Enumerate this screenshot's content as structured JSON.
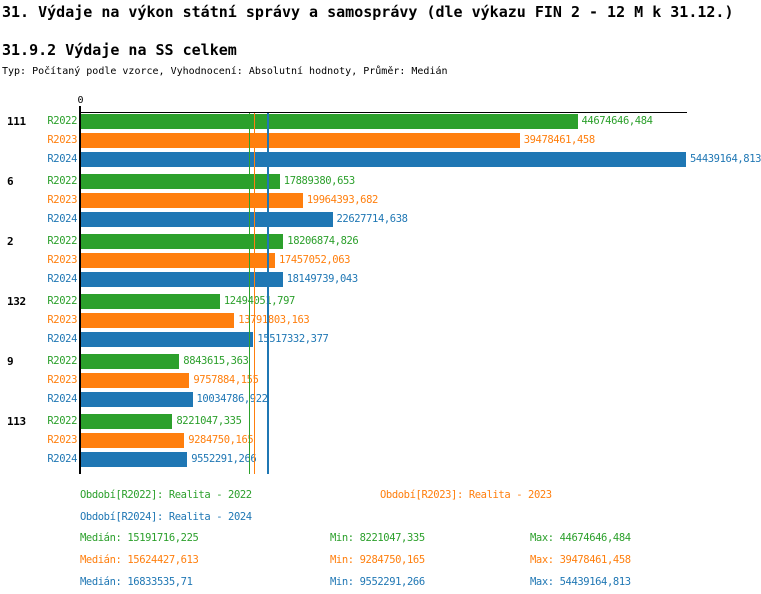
{
  "header": {
    "title": "31. Výdaje na výkon státní správy a samosprávy (dle výkazu FIN 2 - 12 M k 31.12.)",
    "subtitle": "31.9.2 Výdaje na SS celkem",
    "meta": "Typ: Počítaný podle vzorce, Vyhodnocení: Absolutní hodnoty, Průměr: Medián"
  },
  "chart_data": {
    "type": "bar",
    "orientation": "horizontal",
    "x_axis": {
      "zero_label": "0",
      "max_value": 54439164.813
    },
    "grid": false,
    "series_colors": {
      "R2022": "#2ca02c",
      "R2023": "#ff7f0e",
      "R2024": "#1f77b4"
    },
    "groups": [
      {
        "label": "111",
        "bars": [
          {
            "series": "R2022",
            "value": 44674646.484,
            "display": "44674646,484"
          },
          {
            "series": "R2023",
            "value": 39478461.458,
            "display": "39478461,458"
          },
          {
            "series": "R2024",
            "value": 54439164.813,
            "display": "54439164,813"
          }
        ]
      },
      {
        "label": "6",
        "bars": [
          {
            "series": "R2022",
            "value": 17889380.653,
            "display": "17889380,653"
          },
          {
            "series": "R2023",
            "value": 19964393.682,
            "display": "19964393,682"
          },
          {
            "series": "R2024",
            "value": 22627714.638,
            "display": "22627714,638"
          }
        ]
      },
      {
        "label": "2",
        "bars": [
          {
            "series": "R2022",
            "value": 18206874.826,
            "display": "18206874,826"
          },
          {
            "series": "R2023",
            "value": 17457052.063,
            "display": "17457052,063"
          },
          {
            "series": "R2024",
            "value": 18149739.043,
            "display": "18149739,043"
          }
        ]
      },
      {
        "label": "132",
        "bars": [
          {
            "series": "R2022",
            "value": 12494051.797,
            "display": "12494051,797"
          },
          {
            "series": "R2023",
            "value": 13791803.163,
            "display": "13791803,163"
          },
          {
            "series": "R2024",
            "value": 15517332.377,
            "display": "15517332,377"
          }
        ]
      },
      {
        "label": "9",
        "bars": [
          {
            "series": "R2022",
            "value": 8843615.363,
            "display": "8843615,363"
          },
          {
            "series": "R2023",
            "value": 9757884.155,
            "display": "9757884,155"
          },
          {
            "series": "R2024",
            "value": 10034786.922,
            "display": "10034786,922"
          }
        ]
      },
      {
        "label": "113",
        "bars": [
          {
            "series": "R2022",
            "value": 8221047.335,
            "display": "8221047,335"
          },
          {
            "series": "R2023",
            "value": 9284750.165,
            "display": "9284750,165"
          },
          {
            "series": "R2024",
            "value": 9552291.266,
            "display": "9552291,266"
          }
        ]
      }
    ],
    "median_lines": [
      {
        "series": "R2022",
        "value": 15191716.225
      },
      {
        "series": "R2023",
        "value": 15624427.613
      },
      {
        "series": "R2024",
        "value": 16833535.71
      }
    ]
  },
  "legend": [
    {
      "series": "R2022",
      "text": "Období[R2022]: Realita - 2022",
      "row": 0,
      "col": 0
    },
    {
      "series": "R2023",
      "text": "Období[R2023]: Realita - 2023",
      "row": 0,
      "col": 1
    },
    {
      "series": "R2024",
      "text": "Období[R2024]: Realita - 2024",
      "row": 1,
      "col": 0
    }
  ],
  "stats": [
    {
      "series": "R2022",
      "median": "Medián: 15191716,225",
      "min": "Min: 8221047,335",
      "max": "Max: 44674646,484"
    },
    {
      "series": "R2023",
      "median": "Medián: 15624427,613",
      "min": "Min: 9284750,165",
      "max": "Max: 39478461,458"
    },
    {
      "series": "R2024",
      "median": "Medián: 16833535,71",
      "min": "Min: 9552291,266",
      "max": "Max: 54439164,813"
    }
  ]
}
